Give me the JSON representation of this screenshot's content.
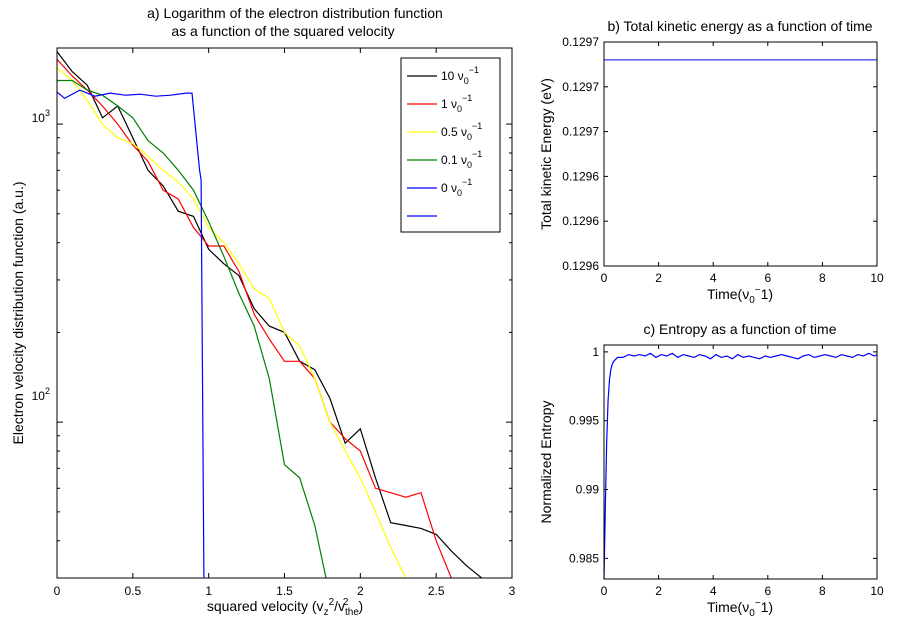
{
  "chart_data": [
    {
      "id": "a",
      "type": "line",
      "title": [
        "a) Logarithm of the electron distribution function",
        "as a function of the squared velocity"
      ],
      "xlabel": "squared velocity (v_z^2/v_the^2)",
      "ylabel": "Electron velocity distribution function (a.u.)",
      "xlim": [
        0,
        3
      ],
      "ylim": [
        30,
        1800
      ],
      "yscale": "log",
      "xticks": [
        "0",
        "0.5",
        "1",
        "1.5",
        "2",
        "2.5",
        "3"
      ],
      "yticks": [
        "10^2",
        "10^3"
      ],
      "legend": {
        "position": "top-right",
        "entries": [
          "10 ν_0^-1",
          "1 ν_0^-1",
          "0.5 ν_0^-1",
          "0.1 ν_0^-1",
          "0 ν_0^-1",
          ""
        ]
      },
      "series": [
        {
          "name": "10 ν_0^-1",
          "color": "#000000",
          "x": [
            0,
            0.1,
            0.2,
            0.3,
            0.4,
            0.5,
            0.6,
            0.7,
            0.8,
            0.9,
            1.0,
            1.1,
            1.2,
            1.3,
            1.4,
            1.5,
            1.6,
            1.7,
            1.8,
            1.9,
            2.0,
            2.1,
            2.2,
            2.3,
            2.4,
            2.5,
            2.6,
            2.7,
            2.8,
            2.88
          ],
          "y": [
            1750,
            1500,
            1350,
            1050,
            1150,
            900,
            700,
            620,
            510,
            490,
            380,
            340,
            310,
            240,
            210,
            200,
            160,
            150,
            120,
            85,
            95,
            65,
            46,
            45,
            44,
            42,
            37,
            33,
            30,
            26
          ]
        },
        {
          "name": "1 ν_0^-1",
          "color": "#ff0000",
          "x": [
            0,
            0.1,
            0.2,
            0.3,
            0.4,
            0.5,
            0.6,
            0.7,
            0.8,
            0.9,
            1.0,
            1.1,
            1.2,
            1.3,
            1.4,
            1.5,
            1.6,
            1.7,
            1.8,
            1.9,
            2.0,
            2.1,
            2.2,
            2.3,
            2.4,
            2.5,
            2.6,
            2.64
          ],
          "y": [
            1650,
            1450,
            1300,
            1150,
            1000,
            850,
            750,
            600,
            560,
            450,
            390,
            390,
            320,
            230,
            190,
            160,
            160,
            140,
            100,
            88,
            80,
            60,
            58,
            56,
            58,
            40,
            30,
            26
          ]
        },
        {
          "name": "0.5 ν_0^-1",
          "color": "#ffff00",
          "x": [
            0,
            0.1,
            0.2,
            0.3,
            0.4,
            0.5,
            0.6,
            0.7,
            0.8,
            0.9,
            1.0,
            1.1,
            1.2,
            1.3,
            1.4,
            1.5,
            1.6,
            1.7,
            1.8,
            1.9,
            2.0,
            2.1,
            2.2,
            2.3,
            2.33
          ],
          "y": [
            1550,
            1400,
            1200,
            1000,
            900,
            860,
            780,
            700,
            640,
            560,
            450,
            400,
            340,
            280,
            260,
            200,
            180,
            140,
            100,
            80,
            65,
            50,
            38,
            30,
            26
          ]
        },
        {
          "name": "0.1 ν_0^-1",
          "color": "#008000",
          "x": [
            0,
            0.1,
            0.2,
            0.3,
            0.4,
            0.5,
            0.6,
            0.7,
            0.8,
            0.9,
            1.0,
            1.1,
            1.2,
            1.3,
            1.4,
            1.5,
            1.6,
            1.7,
            1.8
          ],
          "y": [
            1400,
            1400,
            1300,
            1250,
            1150,
            1050,
            880,
            800,
            700,
            600,
            470,
            360,
            270,
            210,
            140,
            72,
            65,
            45,
            26
          ]
        },
        {
          "name": "0 ν_0^-1",
          "color": "#0000ff",
          "x": [
            0,
            0.05,
            0.15,
            0.25,
            0.35,
            0.45,
            0.55,
            0.65,
            0.75,
            0.85,
            0.89,
            0.94,
            0.95,
            0.97
          ],
          "y": [
            1280,
            1220,
            1300,
            1240,
            1270,
            1250,
            1260,
            1240,
            1250,
            1270,
            1270,
            700,
            650,
            24
          ]
        }
      ]
    },
    {
      "id": "b",
      "type": "line",
      "title": "b) Total kinetic energy as a function of time",
      "xlabel": "Time(ν_0^-1)",
      "ylabel": "Total kinetic Energy (eV)",
      "xlim": [
        0,
        10
      ],
      "ylim": [
        0,
        5
      ],
      "xticks": [
        "0",
        "2",
        "4",
        "6",
        "8",
        "10"
      ],
      "yticks": [
        "0.1296",
        "0.1296",
        "0.1296",
        "0.1297",
        "0.1297",
        "0.1297"
      ],
      "series": [
        {
          "color": "#0000ff",
          "x": [
            0,
            10
          ],
          "y": [
            4.6,
            4.6
          ]
        }
      ]
    },
    {
      "id": "c",
      "type": "line",
      "title": "c) Entropy as a function of time",
      "xlabel": "Time(ν_0^-1)",
      "ylabel": "Normalized Entropy",
      "xlim": [
        0,
        10
      ],
      "ylim": [
        0.9835,
        1.0005
      ],
      "xticks": [
        "0",
        "2",
        "4",
        "6",
        "8",
        "10"
      ],
      "yticks": [
        "0.985",
        "0.99",
        "0.995",
        "1"
      ],
      "series": [
        {
          "color": "#0000ff",
          "x": [
            0,
            0.05,
            0.1,
            0.15,
            0.2,
            0.25,
            0.3,
            0.35,
            0.4,
            0.5,
            0.7,
            0.9,
            1.1,
            1.3,
            1.5,
            1.7,
            1.9,
            2.1,
            2.3,
            2.5,
            2.7,
            2.9,
            3.1,
            3.3,
            3.5,
            3.7,
            3.9,
            4.1,
            4.3,
            4.5,
            4.7,
            4.9,
            5.1,
            5.3,
            5.5,
            5.7,
            5.9,
            6.1,
            6.3,
            6.5,
            6.7,
            6.9,
            7.1,
            7.3,
            7.5,
            7.7,
            7.9,
            8.1,
            8.3,
            8.5,
            8.7,
            8.9,
            9.1,
            9.3,
            9.5,
            9.7,
            9.9,
            10
          ],
          "y": [
            0.9835,
            0.989,
            0.9935,
            0.9965,
            0.998,
            0.9987,
            0.9991,
            0.9993,
            0.9994,
            0.9996,
            0.9996,
            0.9998,
            0.9997,
            0.9998,
            0.9997,
            0.9999,
            0.9996,
            0.9998,
            0.9997,
            0.9999,
            0.9996,
            0.9998,
            0.9997,
            0.9996,
            0.9998,
            0.9997,
            0.9995,
            0.9998,
            0.9996,
            0.9997,
            0.9995,
            0.9998,
            0.9996,
            0.9997,
            0.9996,
            0.9995,
            0.9997,
            0.9996,
            0.9997,
            0.9998,
            0.9997,
            0.9996,
            0.9995,
            0.9997,
            0.9998,
            0.9996,
            0.9997,
            0.9998,
            0.9997,
            0.9996,
            0.9998,
            0.9997,
            0.9996,
            0.9998,
            0.9997,
            0.9999,
            0.9997,
            0.9998
          ]
        }
      ]
    }
  ]
}
